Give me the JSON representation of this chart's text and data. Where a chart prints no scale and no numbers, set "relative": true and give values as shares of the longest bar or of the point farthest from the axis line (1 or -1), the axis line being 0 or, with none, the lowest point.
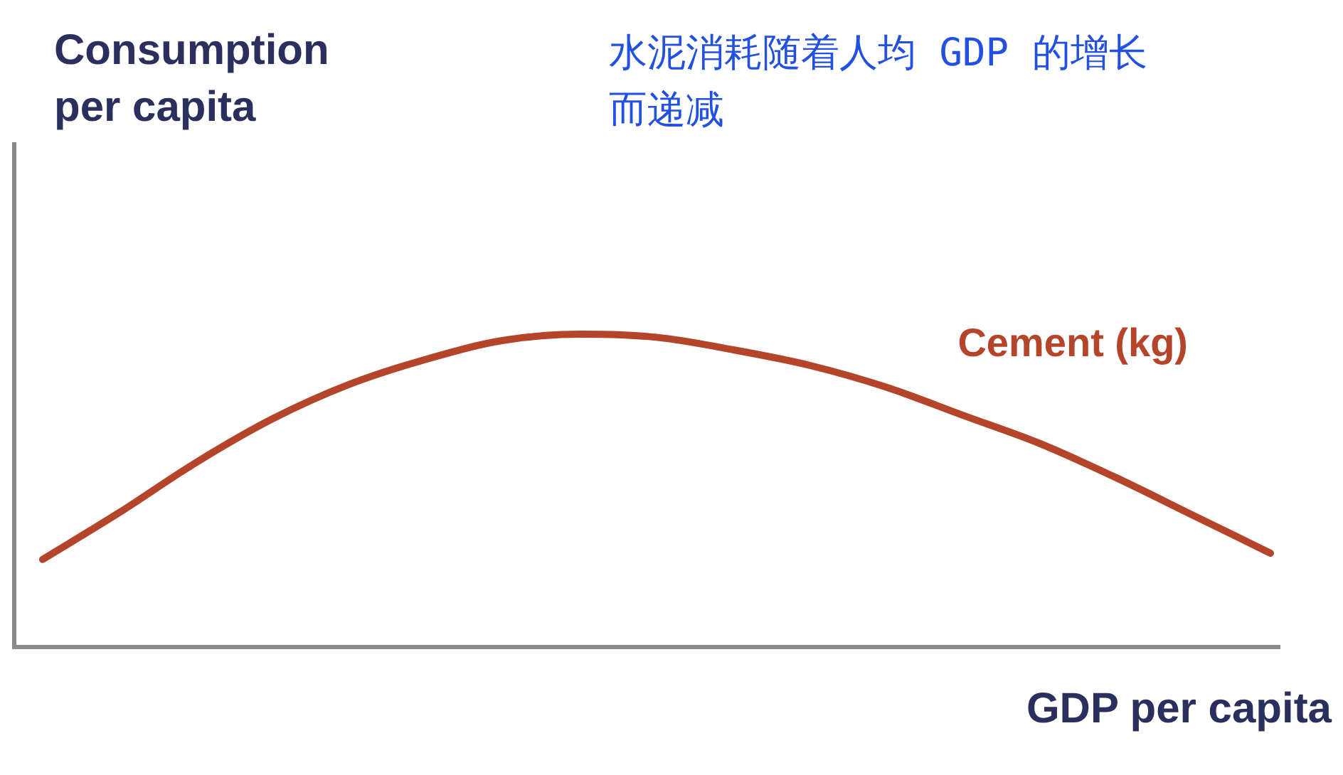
{
  "chart_data": {
    "type": "line",
    "title": "水泥消耗随着人均 GDP 的增长而递减",
    "xlabel": "GDP per capita",
    "ylabel": "Consumption per capita",
    "relative": true,
    "legend": false,
    "marker": "none",
    "categories": [
      null,
      null,
      null,
      null,
      null,
      null,
      null,
      null,
      null,
      null,
      null,
      null,
      null,
      null,
      null,
      null,
      null
    ],
    "series": [
      {
        "name": "Cement (kg)",
        "color": "#b4452a",
        "values": [
          0.28,
          0.43,
          0.59,
          0.73,
          0.84,
          0.92,
          0.98,
          1,
          0.99,
          0.95,
          0.9,
          0.83,
          0.74,
          0.65,
          0.54,
          0.42,
          0.3
        ]
      }
    ]
  }
}
